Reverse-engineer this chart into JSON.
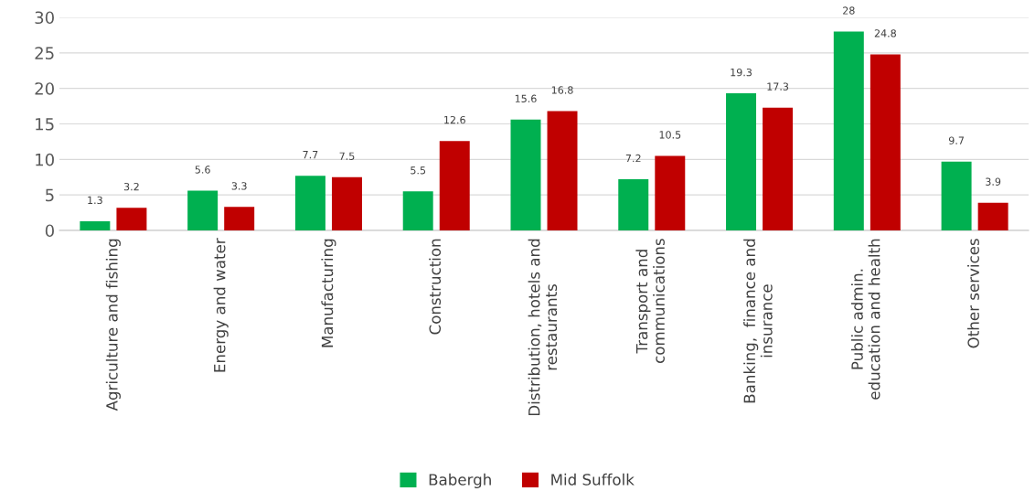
{
  "chart_data": {
    "type": "bar",
    "categories": [
      "Agriculture and fishing",
      "Energy and water",
      "Manufacturing",
      "Construction",
      "Distribution, hotels and\nrestaurants",
      "Transport and\ncommunications",
      "Banking,  finance and\ninsurance",
      "Public admin.\neducation and health",
      "Other services"
    ],
    "series": [
      {
        "name": "Babergh",
        "color": "#00b050",
        "values": [
          1.3,
          5.6,
          7.7,
          5.5,
          15.6,
          7.2,
          19.3,
          28,
          9.7
        ]
      },
      {
        "name": "Mid Suffolk",
        "color": "#c00000",
        "values": [
          3.2,
          3.3,
          7.5,
          12.6,
          16.8,
          10.5,
          17.3,
          24.8,
          3.9
        ]
      }
    ],
    "ylim": [
      0,
      30
    ],
    "yticks": [
      0,
      5,
      10,
      15,
      20,
      25,
      30
    ],
    "grid": "y",
    "legend": "bottom",
    "data_labels": true
  }
}
